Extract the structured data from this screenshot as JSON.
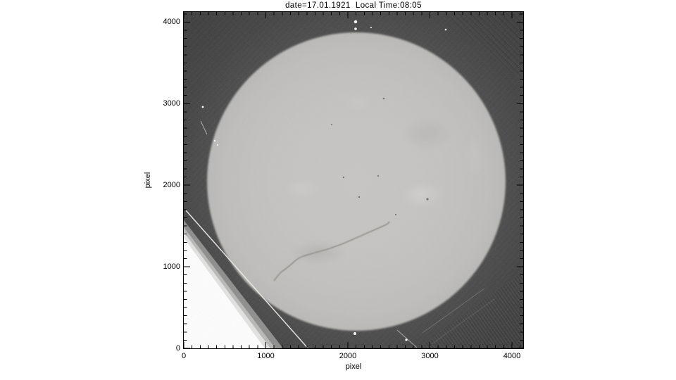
{
  "title": "date=17.01.1921  Local Time:08:05",
  "axes": {
    "x": {
      "label": "pixel",
      "tick_labels": [
        "0",
        "1000",
        "2000",
        "3000",
        "4000"
      ],
      "tick_values": [
        0,
        1000,
        2000,
        3000,
        4000
      ],
      "minor_interval": 100,
      "range": [
        0,
        4140
      ]
    },
    "y": {
      "label": "pixel",
      "tick_labels": [
        "0",
        "1000",
        "2000",
        "3000",
        "4000"
      ],
      "tick_values": [
        0,
        1000,
        2000,
        3000,
        4000
      ],
      "minor_interval": 100,
      "range": [
        0,
        4130
      ]
    }
  },
  "colors": {
    "page_bg": "#ffffff",
    "axis": "#000000",
    "plate_background_gray": "#3b3b3b",
    "sun_disk_gray": "#c4c3c0",
    "overexposed_corner": "#ffffff"
  },
  "chart_data": {
    "type": "heatmap",
    "title": "date=17.01.1921  Local Time:08:05",
    "xlabel": "pixel",
    "ylabel": "pixel",
    "xlim": [
      0,
      4140
    ],
    "ylim": [
      0,
      4130
    ],
    "x_ticks": [
      0,
      1000,
      2000,
      3000,
      4000
    ],
    "y_ticks": [
      0,
      1000,
      2000,
      3000,
      4000
    ],
    "minor_tick_interval": 100,
    "grid": false,
    "legend": "none",
    "image_content": "Grayscale scan of a full-disk solar photographic plate on a dark background",
    "sun_disk": {
      "center_x": 2100,
      "center_y": 2045,
      "radius": 1825
    },
    "features": [
      {
        "name": "overexposed-white-corner",
        "shape": "triangle",
        "vertices": [
          [
            0,
            1360
          ],
          [
            0,
            0
          ],
          [
            990,
            0
          ]
        ]
      },
      {
        "name": "bright-diagonal-scratch",
        "from": [
          26,
          1690
        ],
        "to": [
          1536,
          0
        ]
      },
      {
        "name": "dark-solar-filament",
        "from": [
          1176,
          930
        ],
        "to": [
          2506,
          1560
        ]
      },
      {
        "name": "bright-dots-above-north-limb",
        "points": [
          [
            2094,
            4003
          ],
          [
            2094,
            3917
          ]
        ]
      },
      {
        "name": "bright-dot-below-south-limb",
        "points": [
          [
            2086,
            181
          ]
        ]
      },
      {
        "name": "plage-bright-mottling",
        "center": [
          2900,
          2030
        ]
      },
      {
        "name": "small-dark-pores",
        "points": [
          [
            2970,
            1815
          ],
          [
            2440,
            3000
          ],
          [
            2140,
            2240
          ],
          [
            1950,
            2000
          ]
        ]
      },
      {
        "name": "hatched-emulsion-pattern",
        "region": "bottom-right corner, x>2850, y<950"
      },
      {
        "name": "hatched-texture",
        "region": "top-right corner, x>3150, y>3250"
      }
    ]
  }
}
